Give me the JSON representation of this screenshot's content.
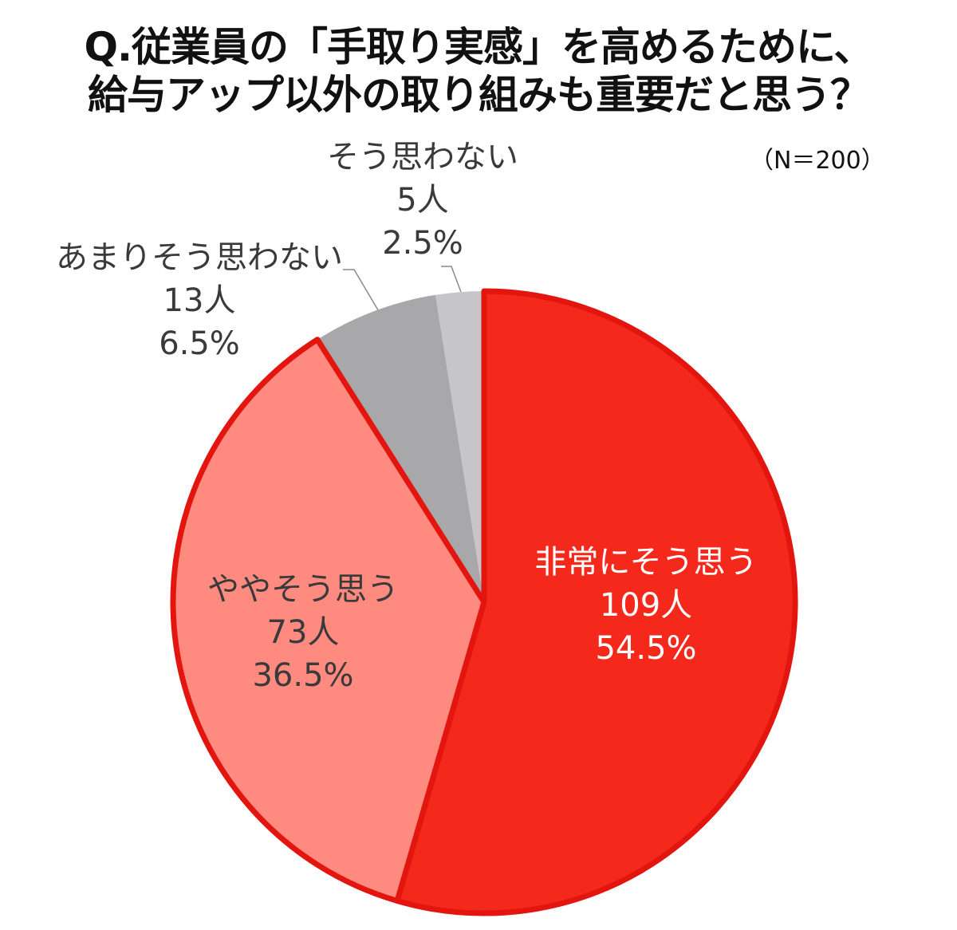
{
  "title": {
    "line1": "Q.従業員の「手取り実感」を高めるために、",
    "line2": "給与アップ以外の取り組みも重要だと思う？"
  },
  "sample": "（N＝200）",
  "colors": {
    "very_agree": "#f5281c",
    "somewhat_agree": "#ff8a80",
    "not_very": "#a8a7a9",
    "disagree": "#c6c5c7",
    "outline": "#e2160f",
    "leader": "#888888"
  },
  "labels": {
    "very_agree": {
      "name": "非常にそう思う",
      "count": "109人",
      "pct": "54.5%"
    },
    "somewhat_agree": {
      "name": "ややそう思う",
      "count": "73人",
      "pct": "36.5%"
    },
    "not_very": {
      "name": "あまりそう思わない",
      "count": "13人",
      "pct": "6.5%"
    },
    "disagree": {
      "name": "そう思わない",
      "count": "5人",
      "pct": "2.5%"
    }
  },
  "chart_data": {
    "type": "pie",
    "title": "Q.従業員の「手取り実感」を高めるために、給与アップ以外の取り組みも重要だと思う？",
    "subtitle": "（N＝200）",
    "categories": [
      "非常にそう思う",
      "ややそう思う",
      "あまりそう思わない",
      "そう思わない"
    ],
    "counts": [
      109,
      73,
      13,
      5
    ],
    "values": [
      54.5,
      36.5,
      6.5,
      2.5
    ],
    "unit": "%",
    "start_angle": "12 o'clock, clockwise",
    "total": 200
  }
}
